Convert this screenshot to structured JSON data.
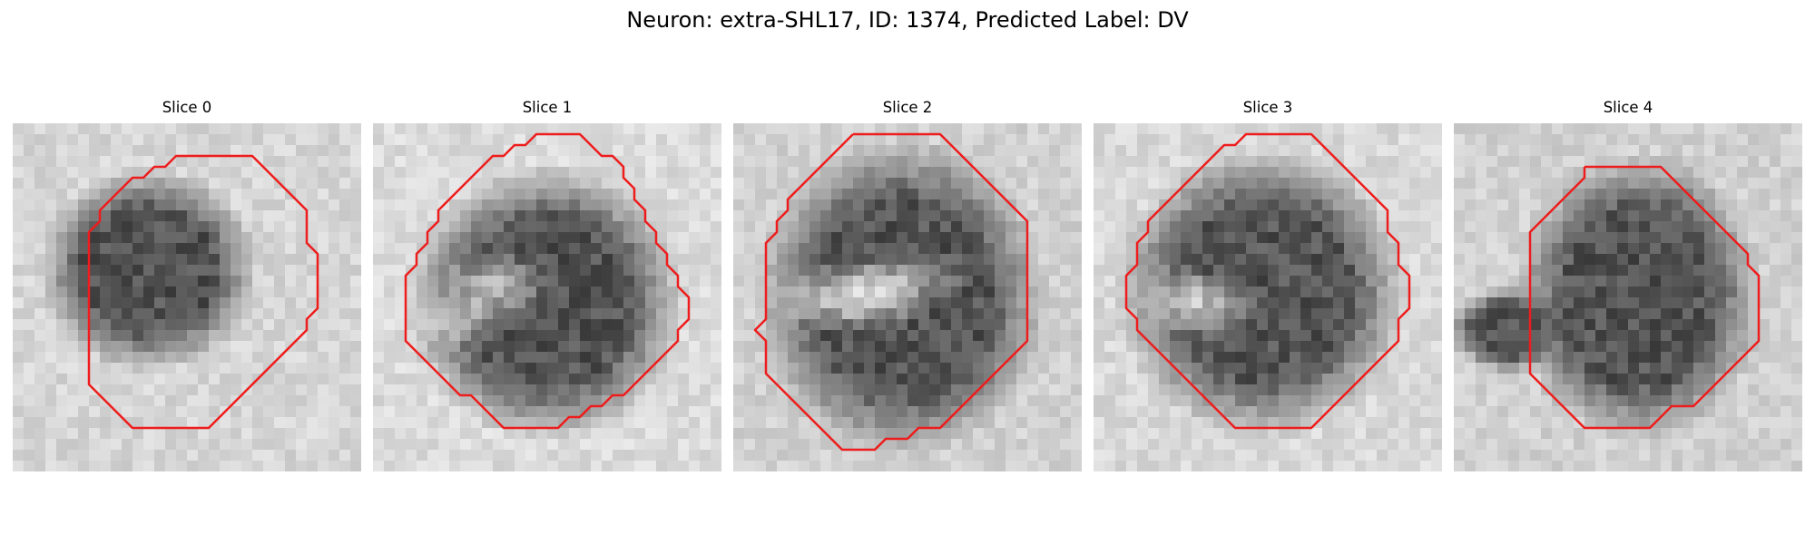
{
  "figure": {
    "title": "Neuron: extra-SHL17, ID: 1374, Predicted Label: DV"
  },
  "panels": [
    {
      "title": "Slice 0"
    },
    {
      "title": "Slice 1"
    },
    {
      "title": "Slice 2"
    },
    {
      "title": "Slice 3"
    },
    {
      "title": "Slice 4"
    }
  ],
  "colors": {
    "contour": "#ee1c1c",
    "background": "#ffffff"
  }
}
